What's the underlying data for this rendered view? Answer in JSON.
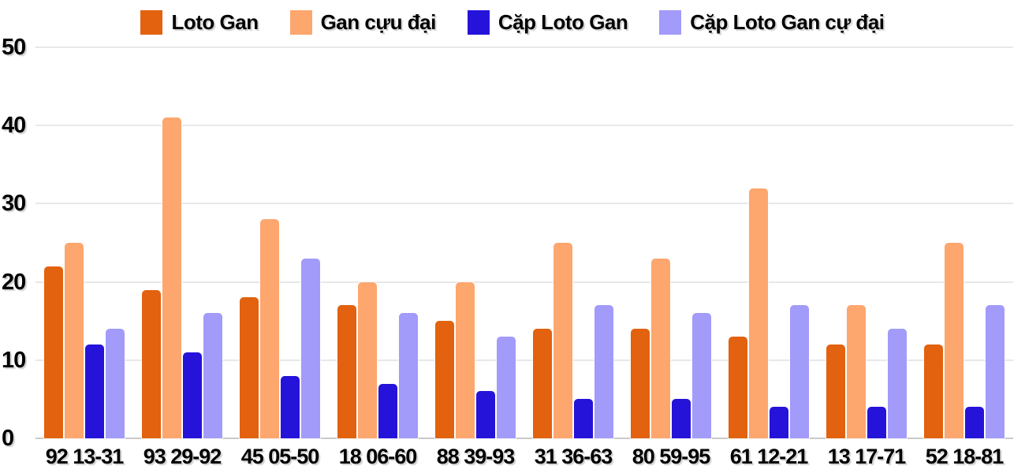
{
  "chart_data": {
    "type": "bar",
    "title": "",
    "xlabel": "",
    "ylabel": "",
    "ylim": [
      0,
      50
    ],
    "yticks": [
      0,
      10,
      20,
      30,
      40,
      50
    ],
    "grid": true,
    "legend_position": "top",
    "categories": [
      "92 13-31",
      "93 29-92",
      "45 05-50",
      "18 06-60",
      "88 39-93",
      "31 36-63",
      "80 59-95",
      "61 12-21",
      "13 17-71",
      "52 18-81"
    ],
    "series": [
      {
        "name": "Loto Gan",
        "color": "#e2620f",
        "values": [
          22,
          19,
          18,
          17,
          15,
          14,
          14,
          13,
          12,
          12
        ]
      },
      {
        "name": "Gan cựu đại",
        "color": "#fda66e",
        "values": [
          25,
          41,
          28,
          20,
          20,
          25,
          23,
          32,
          17,
          25
        ]
      },
      {
        "name": "Cặp Loto Gan",
        "color": "#2613d9",
        "values": [
          12,
          11,
          8,
          7,
          6,
          5,
          5,
          4,
          4,
          4
        ]
      },
      {
        "name": "Cặp Loto Gan cự đại",
        "color": "#a29bfa",
        "values": [
          14,
          16,
          23,
          16,
          13,
          17,
          16,
          17,
          14,
          17
        ]
      }
    ]
  },
  "colors": {
    "gridline": "#e8e8e8",
    "baseline": "#c9c9c9",
    "text": "#000000",
    "background": "#ffffff"
  }
}
